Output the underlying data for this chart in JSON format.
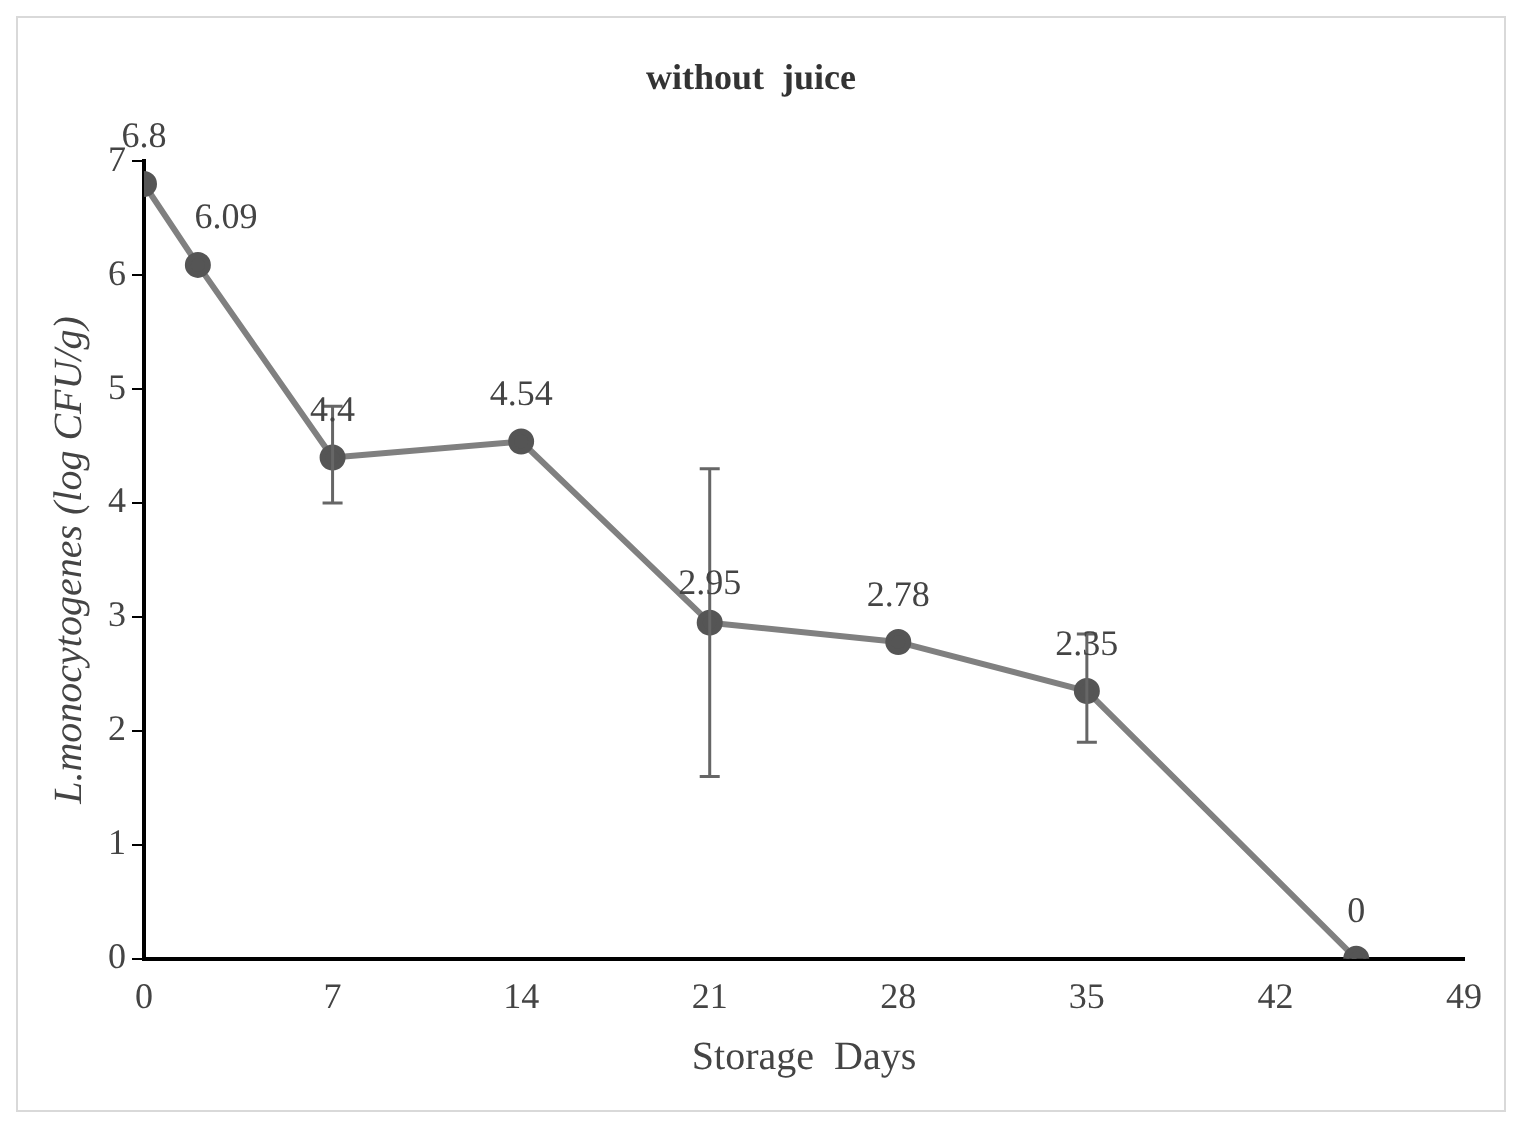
{
  "chart_data": {
    "type": "line",
    "title": "without  juice",
    "xlabel": "Storage  Days",
    "ylabel": "L.monocytogenes (log CFU/g)",
    "x": [
      0,
      2,
      7,
      14,
      21,
      28,
      35,
      45
    ],
    "series": [
      {
        "color": "#808080",
        "values": [
          6.8,
          6.09,
          4.4,
          4.54,
          2.95,
          2.78,
          2.35,
          0
        ],
        "errors": [
          null,
          null,
          [
            4.0,
            4.85
          ],
          null,
          [
            1.6,
            4.3
          ],
          null,
          [
            1.9,
            2.85
          ],
          null
        ]
      }
    ],
    "xlim": [
      0,
      49
    ],
    "xticks": [
      0,
      7,
      14,
      21,
      28,
      35,
      42,
      49
    ],
    "ylim": [
      0,
      7
    ],
    "yticks": [
      0,
      1,
      2,
      3,
      4,
      5,
      6,
      7
    ],
    "data_labels": true,
    "grid": false,
    "legend": false,
    "marker": "circle",
    "line_style": "solid"
  }
}
